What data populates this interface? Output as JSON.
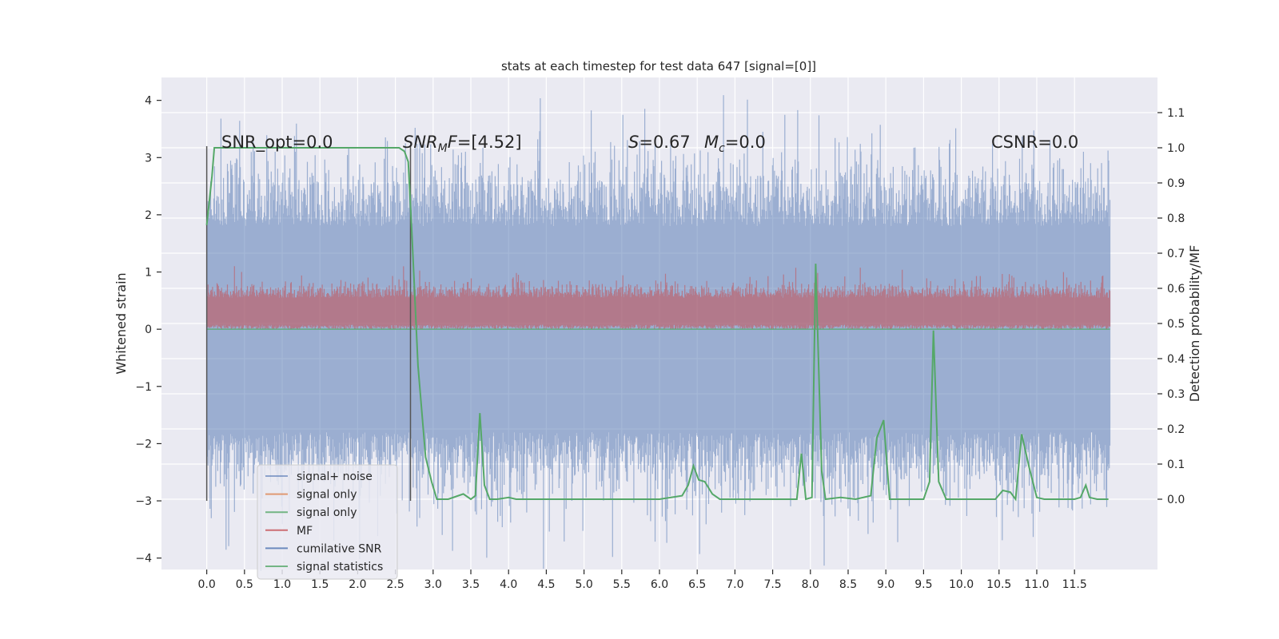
{
  "chart_data": {
    "type": "line",
    "title": "stats at each timestep for test data 647 [signal=[0]]",
    "ylabel": "Whitened strain",
    "y2label": "Detection probability/MF",
    "xlim": [
      -0.6,
      12.6
    ],
    "ylim": [
      -4.2,
      4.4
    ],
    "y2lim": [
      -0.2,
      1.2
    ],
    "grid": true,
    "legend_position": "lower-left",
    "x_ticks": [
      "0.0",
      "0.5",
      "1.0",
      "1.5",
      "2.0",
      "2.5",
      "3.0",
      "3.5",
      "4.0",
      "4.5",
      "5.0",
      "5.5",
      "6.0",
      "6.5",
      "7.0",
      "7.5",
      "8.0",
      "8.5",
      "9.0",
      "9.5",
      "10.0",
      "10.5",
      "11.0",
      "11.5"
    ],
    "y_ticks": [
      "4",
      "3",
      "2",
      "1",
      "0",
      "−1",
      "−2",
      "−3",
      "−4"
    ],
    "y2_ticks": [
      "1.1",
      "1.0",
      "0.9",
      "0.8",
      "0.7",
      "0.6",
      "0.5",
      "0.4",
      "0.3",
      "0.2",
      "0.1",
      "0.0"
    ],
    "annotations": {
      "snr_opt": "SNR_opt=0.0",
      "snr_mf": "=[4.52]",
      "s_value": "=0.67",
      "mc_value": "=0.0",
      "csnr": "CSNR=0.0"
    },
    "vertical_markers": [
      0.0,
      2.7
    ],
    "legend": [
      {
        "label": "signal+ noise",
        "color": "#4c72b0"
      },
      {
        "label": "signal only",
        "color": "#dd8452"
      },
      {
        "label": "signal only",
        "color": "#55a868"
      },
      {
        "label": "MF",
        "color": "#c44e52"
      },
      {
        "label": "cumilative SNR",
        "color": "#4c72b0"
      },
      {
        "label": "signal statistics",
        "color": "#55a868"
      }
    ],
    "series": [
      {
        "name": "signal statistics",
        "axis": "right",
        "color": "#55a868",
        "x": [
          0.0,
          0.03,
          0.07,
          0.1,
          0.2,
          0.5,
          1.0,
          1.5,
          2.0,
          2.4,
          2.55,
          2.62,
          2.67,
          2.72,
          2.8,
          2.9,
          2.98,
          3.05,
          3.2,
          3.4,
          3.5,
          3.56,
          3.62,
          3.68,
          3.75,
          3.85,
          4.0,
          4.1,
          5.0,
          6.0,
          6.3,
          6.38,
          6.45,
          6.52,
          6.6,
          6.7,
          6.8,
          6.9,
          7.0,
          7.1,
          7.5,
          7.82,
          7.88,
          7.94,
          8.02,
          8.07,
          8.15,
          8.2,
          8.4,
          8.6,
          8.8,
          8.88,
          8.97,
          9.05,
          9.15,
          9.5,
          9.58,
          9.63,
          9.7,
          9.8,
          10.0,
          10.45,
          10.55,
          10.65,
          10.72,
          10.8,
          10.9,
          11.0,
          11.1,
          11.5,
          11.58,
          11.65,
          11.7,
          11.8,
          11.95
        ],
        "values": [
          0.78,
          0.84,
          0.92,
          1.0,
          1.0,
          1.0,
          1.0,
          1.0,
          1.0,
          1.0,
          1.0,
          0.99,
          0.96,
          0.75,
          0.38,
          0.12,
          0.05,
          0.0,
          0.0,
          0.015,
          0.0,
          0.01,
          0.245,
          0.04,
          0.0,
          0.0,
          0.005,
          0.0,
          0.0,
          0.0,
          0.01,
          0.04,
          0.095,
          0.055,
          0.05,
          0.015,
          0.0,
          0.0,
          0.0,
          0.0,
          0.0,
          0.0,
          0.13,
          0.0,
          0.005,
          0.67,
          0.08,
          0.0,
          0.005,
          0.0,
          0.01,
          0.175,
          0.225,
          0.0,
          0.0,
          0.0,
          0.05,
          0.48,
          0.05,
          0.0,
          0.0,
          0.0,
          0.025,
          0.02,
          0.0,
          0.185,
          0.09,
          0.005,
          0.0,
          0.0,
          0.005,
          0.04,
          0.005,
          0.0,
          0.0
        ]
      }
    ]
  }
}
